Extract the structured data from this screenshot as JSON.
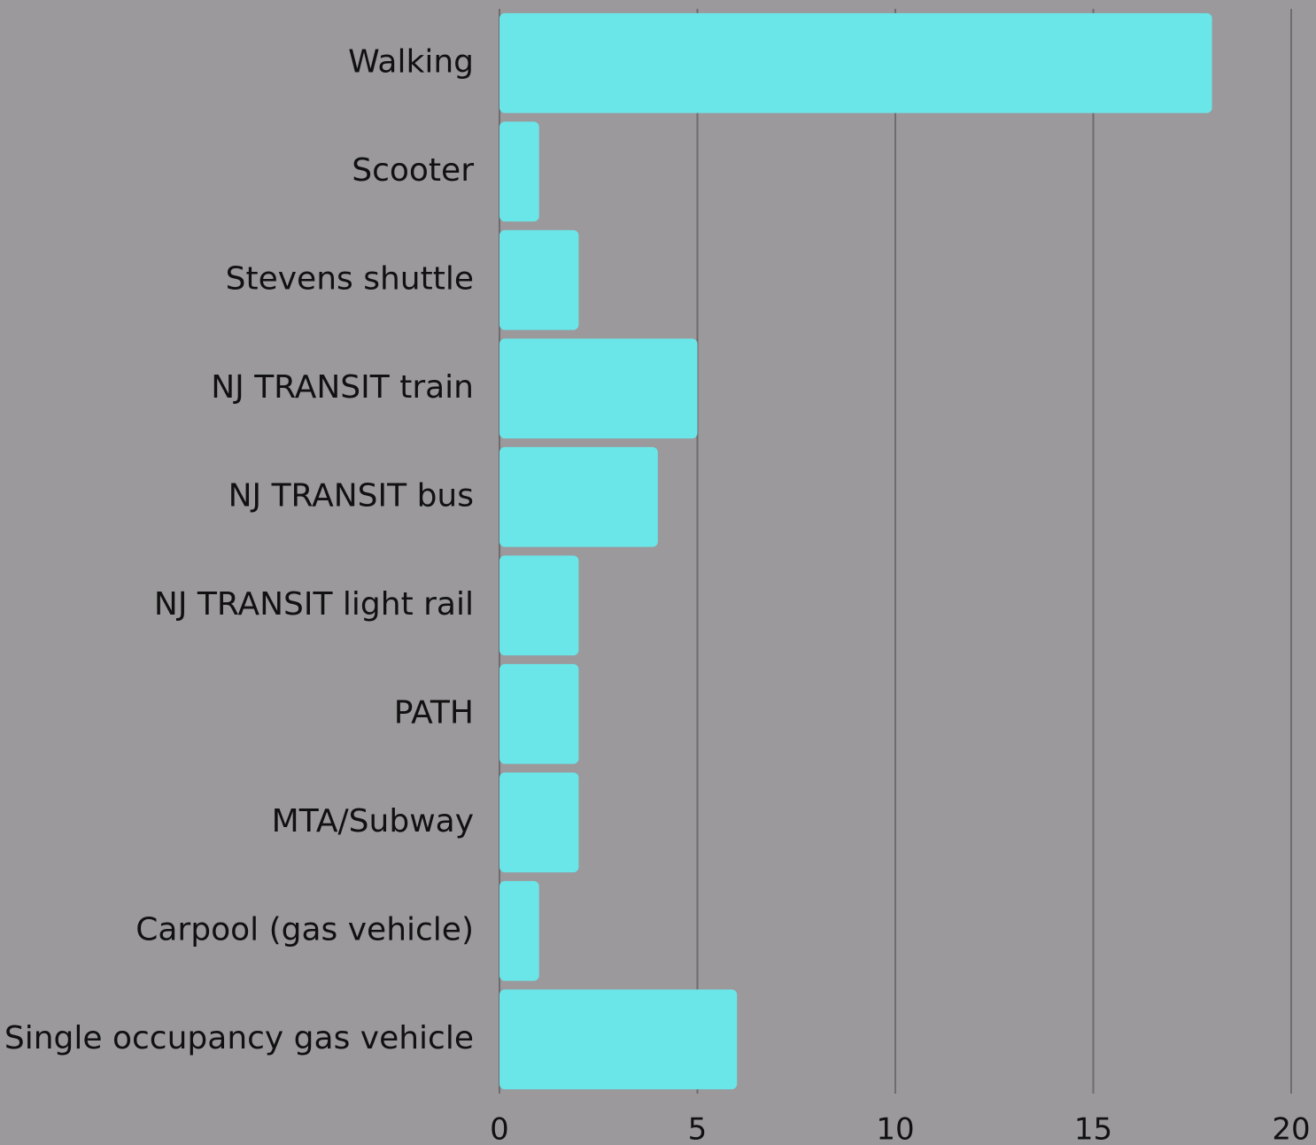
{
  "chart_data": {
    "type": "bar",
    "orientation": "horizontal",
    "categories": [
      "Walking",
      "Scooter",
      "Stevens shuttle",
      "NJ TRANSIT train",
      "NJ TRANSIT bus",
      "NJ TRANSIT light rail",
      "PATH",
      "MTA/Subway",
      "Carpool (gas vehicle)",
      "Single occupancy gas vehicle"
    ],
    "values": [
      18,
      1,
      2,
      5,
      4,
      2,
      2,
      2,
      1,
      6
    ],
    "color": "#6ae6e9",
    "xlim": [
      0,
      20
    ],
    "xticks": [
      0,
      5,
      10,
      15,
      20
    ],
    "grid": true
  }
}
